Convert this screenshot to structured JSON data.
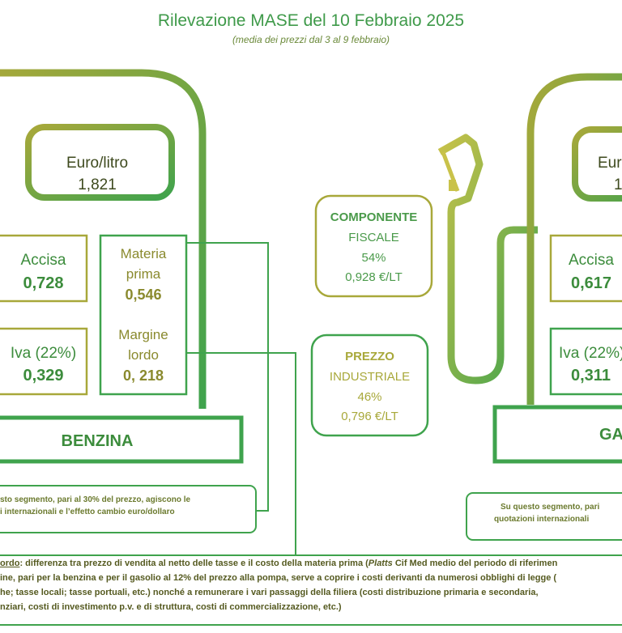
{
  "title": "Rilevazione MASE del 10 Febbraio 2025",
  "subtitle": "(media dei prezzi dal 3 al 9 febbraio)",
  "benzina": {
    "euro_label": "Euro/litro",
    "euro_value": "1,821",
    "accisa_label": "Accisa",
    "accisa_value": "0,728",
    "iva_label": "Iva (22%)",
    "iva_value": "0,329",
    "materia_label_1": "Materia",
    "materia_label_2": "prima",
    "materia_value": "0,546",
    "margine_label_1": "Margine",
    "margine_label_2": "lordo",
    "margine_value": "0, 218",
    "name": "BENZINA",
    "note_1": "sto segmento, pari al 30% del prezzo, agiscono le",
    "note_2": "i internazionali e l’effetto cambio euro/dollaro"
  },
  "gasolio": {
    "euro_label": "Eur",
    "euro_value": "1",
    "accisa_label": "Accisa",
    "accisa_value": "0,617",
    "iva_label": "Iva (22%)",
    "iva_value": "0,311",
    "name": "GA",
    "note_1": "Su questo segmento, pari",
    "note_2": "quotazioni internazionali"
  },
  "componente_fiscale": {
    "label_1": "COMPONENTE",
    "label_2": "FISCALE",
    "percent": "54%",
    "value": "0,928 €/LT"
  },
  "prezzo_industriale": {
    "label_1": "PREZZO",
    "label_2": "INDUSTRIALE",
    "percent": "46%",
    "value": "0,796 €/LT"
  },
  "footnote": {
    "line1_term": "ordo",
    "line1_a": ": differenza tra prezzo di vendita al netto delle tasse e il costo della materia prima (",
    "line1_platts": "Platts",
    "line1_b": " Cif Med medio del periodo di riferimen",
    "line2": "ine, pari per la benzina e per il gasolio al 12% del prezzo alla pompa, serve a coprire i costi derivanti da numerosi obblighi di legge (",
    "line3": "he; tasse locali; tasse portuali, etc.) nonché a remunerare i vari passaggi della filiera (costi distribuzione primaria e secondaria,",
    "line4": "nziari, costi di investimento p.v. e di struttura, costi di commercializzazione, etc.)"
  },
  "colors": {
    "green": "#3fa34d",
    "olive": "#a8a83a",
    "text_green": "#3f9a4a"
  }
}
